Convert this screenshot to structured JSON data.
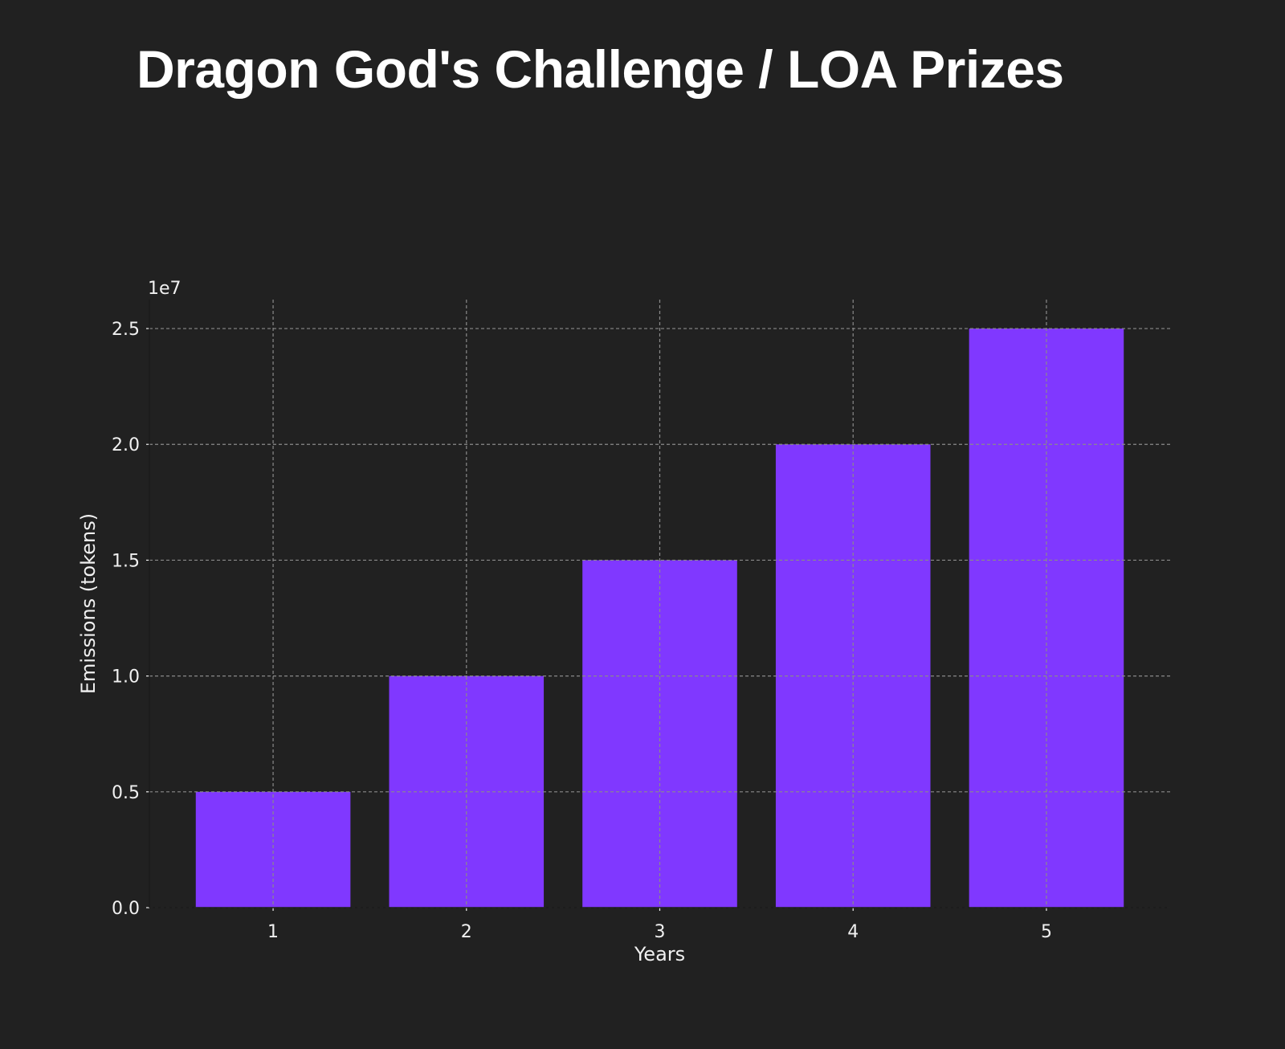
{
  "chart_data": {
    "type": "bar",
    "title": "Dragon God's Challenge / LOA Prizes",
    "xlabel": "Years",
    "ylabel": "Emissions (tokens)",
    "categories": [
      "1",
      "2",
      "3",
      "4",
      "5"
    ],
    "x": [
      1,
      2,
      3,
      4,
      5
    ],
    "values": [
      5000000,
      10000000,
      15000000,
      20000000,
      25000000
    ],
    "y_offset_label": "1e7",
    "yticks": [
      0.0,
      0.5,
      1.0,
      1.5,
      2.0,
      2.5
    ],
    "ytick_labels": [
      "0.0",
      "0.5",
      "1.0",
      "1.5",
      "2.0",
      "2.5"
    ],
    "xlim": [
      0.36,
      5.64
    ],
    "ylim": [
      0,
      26250000
    ],
    "grid": true,
    "colors": {
      "bar": "#8038ff",
      "background": "#212121",
      "grid": "#8a8a8a"
    }
  }
}
